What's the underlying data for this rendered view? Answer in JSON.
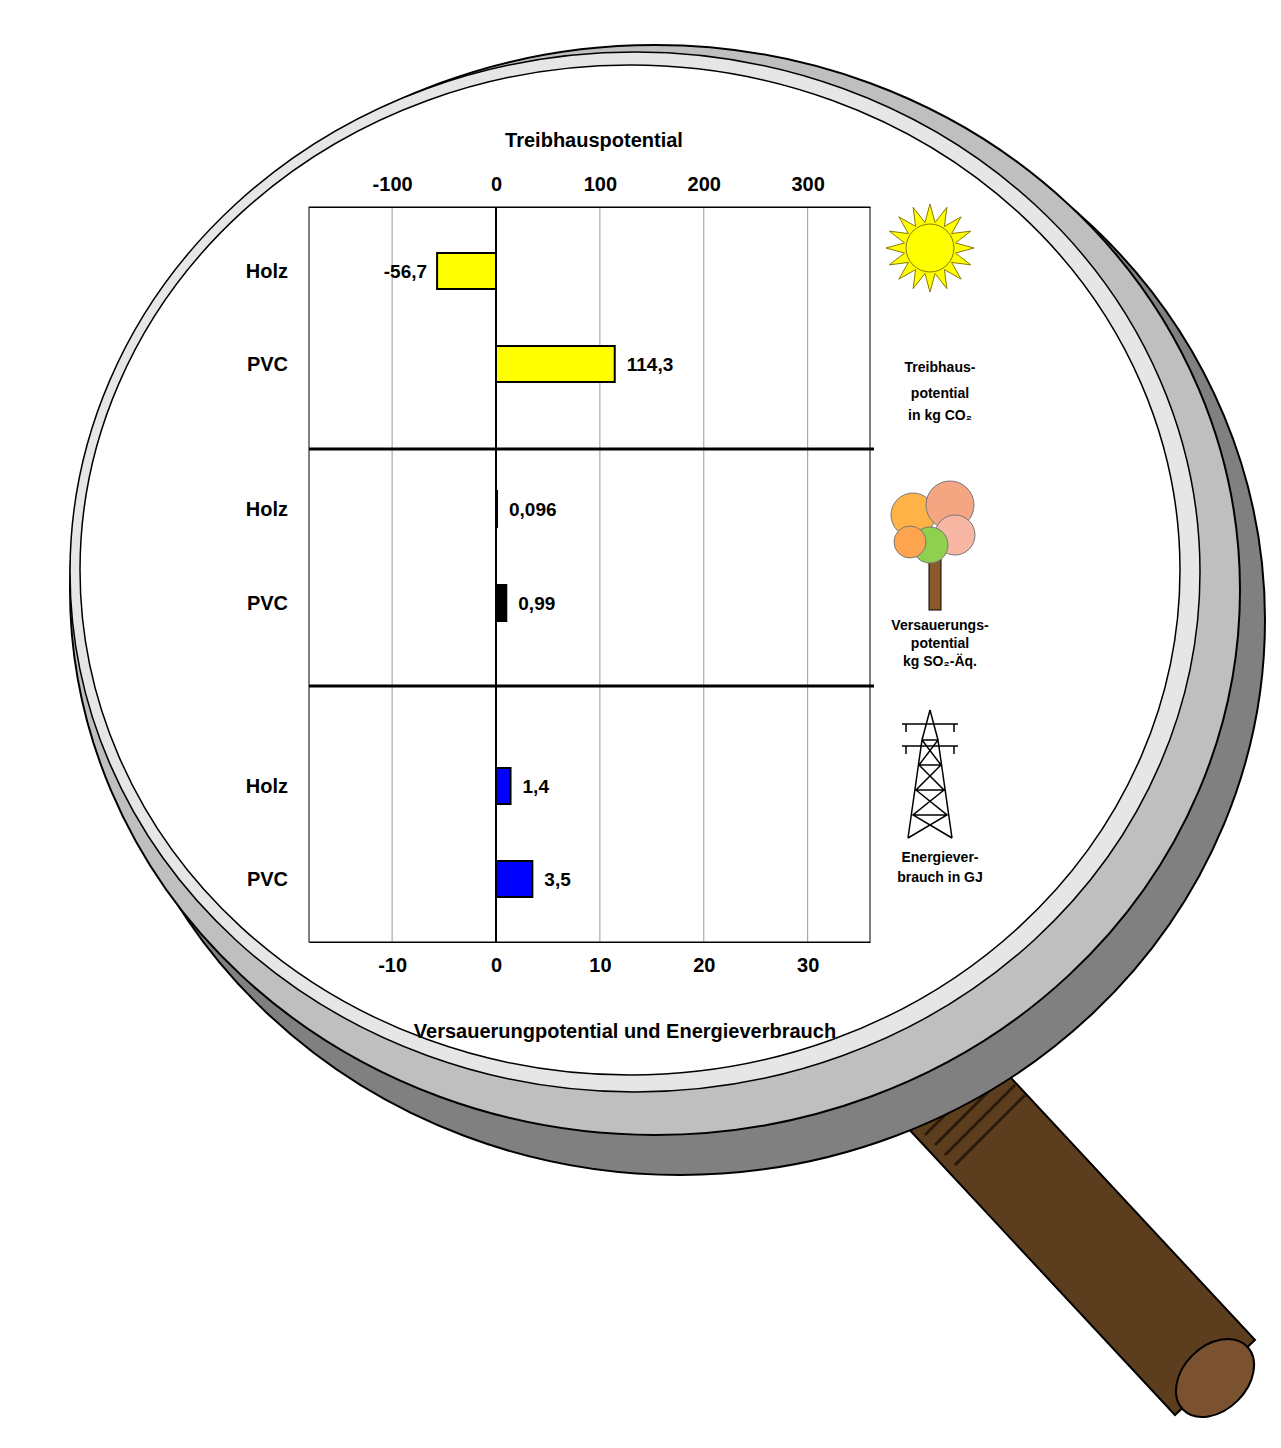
{
  "chart_data": [
    {
      "type": "bar",
      "orientation": "horizontal",
      "xlabel": "Treibhauspotential",
      "categories": [
        "Holz",
        "PVC"
      ],
      "values": [
        -56.7,
        114.3
      ],
      "value_labels": [
        "-56,7",
        "114,3"
      ],
      "color": "#ffff00",
      "data_labels": true,
      "grid": true,
      "xlim": [
        -180,
        360
      ],
      "xticks": [
        -100,
        0,
        100,
        200,
        300
      ],
      "unit_label": [
        "Treibhaus-",
        "potential",
        "in kg CO₂"
      ]
    },
    {
      "type": "bar",
      "orientation": "horizontal",
      "categories": [
        "Holz",
        "PVC"
      ],
      "values": [
        0.096,
        0.99
      ],
      "value_labels": [
        "0,096",
        "0,99"
      ],
      "color": "#000000",
      "data_labels": true,
      "xlim": [
        -18,
        36
      ],
      "unit_label": [
        "Versauerungs-",
        "potential",
        "kg SO₂-Äq."
      ]
    },
    {
      "type": "bar",
      "orientation": "horizontal",
      "xlabel": "Versauerungpotential und Energieverbrauch",
      "categories": [
        "Holz",
        "PVC"
      ],
      "values": [
        1.4,
        3.5
      ],
      "value_labels": [
        "1,4",
        "3,5"
      ],
      "color": "#0000ff",
      "data_labels": true,
      "xlim": [
        -18,
        36
      ],
      "xticks": [
        -10,
        0,
        10,
        20,
        30
      ],
      "unit_label": [
        "Energiever-",
        "brauch  in GJ"
      ]
    }
  ]
}
